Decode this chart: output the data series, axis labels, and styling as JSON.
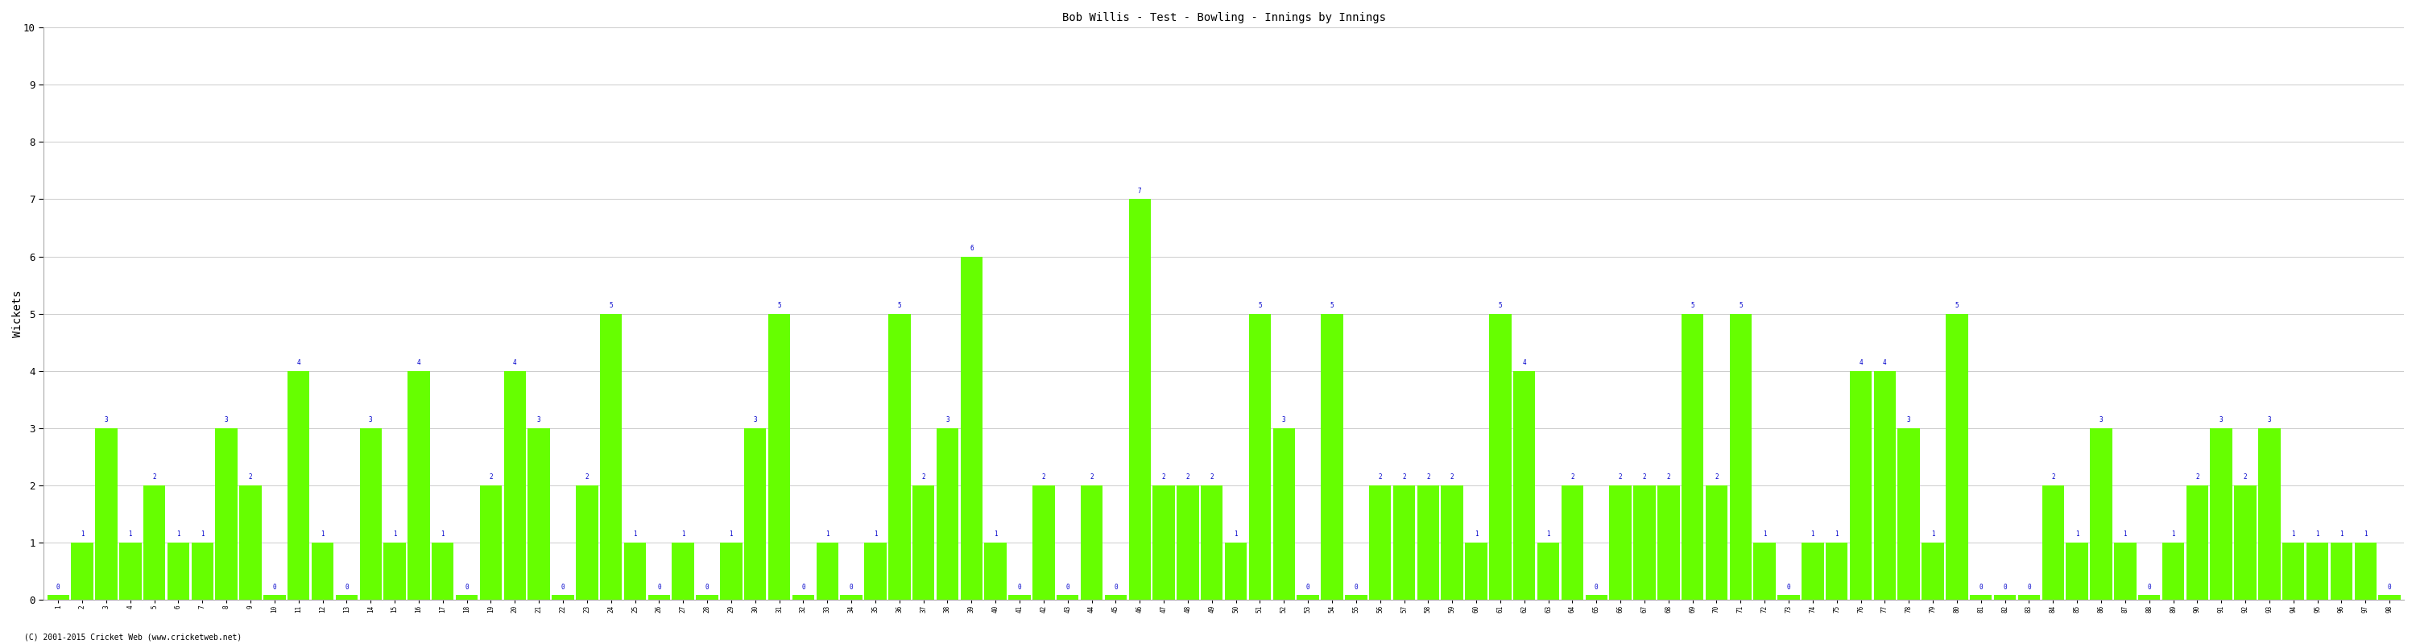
{
  "title": "Bob Willis - Test - Bowling - Innings by Innings",
  "ylabel": "Wickets",
  "bar_color": "#66ff00",
  "label_color": "#0000cc",
  "bg_color": "#ffffff",
  "grid_color": "#cccccc",
  "ylim": [
    0,
    10
  ],
  "yticks": [
    0,
    1,
    2,
    3,
    4,
    5,
    6,
    7,
    8,
    9,
    10
  ],
  "footer": "(C) 2001-2015 Cricket Web (www.cricketweb.net)",
  "innings": [
    1,
    2,
    3,
    4,
    5,
    6,
    7,
    8,
    9,
    10,
    11,
    12,
    13,
    14,
    15,
    16,
    17,
    18,
    19,
    20,
    21,
    22,
    23,
    24,
    25,
    26,
    27,
    28,
    29,
    30,
    31,
    32,
    33,
    34,
    35,
    36,
    37,
    38,
    39,
    40,
    41,
    42,
    43,
    44,
    45,
    46,
    47,
    48,
    49,
    50,
    51,
    52,
    53,
    54,
    55,
    56,
    57,
    58,
    59,
    60,
    61,
    62,
    63,
    64,
    65,
    66,
    67,
    68,
    69,
    70,
    71,
    72,
    73,
    74,
    75,
    76,
    77,
    78,
    79,
    80,
    81,
    82,
    83,
    84,
    85,
    86,
    87,
    88,
    89,
    90,
    91,
    92,
    93,
    94,
    95,
    96,
    97,
    98
  ],
  "wickets": [
    0,
    1,
    3,
    1,
    2,
    1,
    1,
    3,
    2,
    0,
    4,
    1,
    0,
    3,
    1,
    4,
    1,
    0,
    2,
    4,
    3,
    0,
    2,
    5,
    1,
    0,
    1,
    0,
    1,
    3,
    5,
    0,
    1,
    0,
    1,
    5,
    2,
    3,
    6,
    1,
    0,
    2,
    0,
    2,
    0,
    7,
    2,
    2,
    2,
    1,
    5,
    3,
    0,
    5,
    0,
    2,
    2,
    2,
    2,
    1,
    5,
    4,
    1,
    2,
    0,
    2,
    2,
    2,
    5,
    2,
    5,
    1,
    0,
    1,
    1,
    4,
    4,
    3,
    1,
    5,
    0,
    0,
    0,
    2,
    1,
    3,
    1,
    0,
    1,
    2,
    3,
    2,
    3,
    1,
    1,
    1,
    1,
    0
  ]
}
